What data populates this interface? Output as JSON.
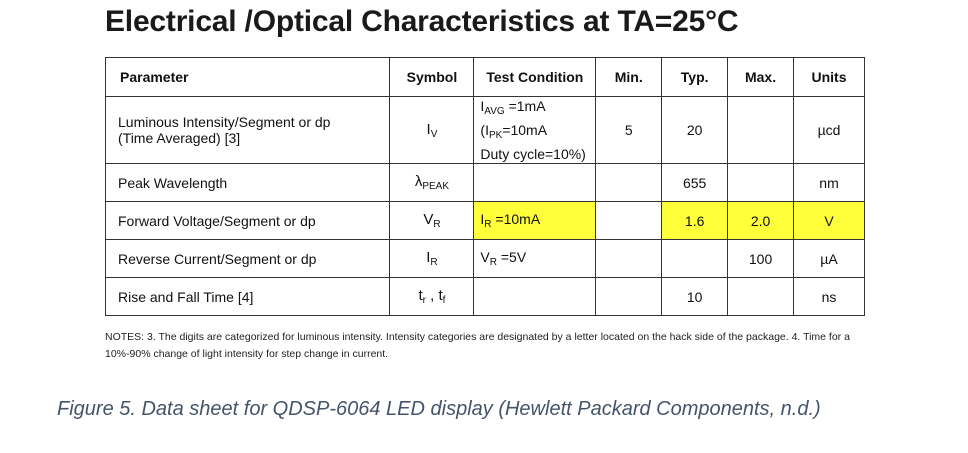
{
  "title": "Electrical /Optical Characteristics at TA=25°C",
  "table": {
    "headers": [
      "Parameter",
      "Symbol",
      "Test Condition",
      "Min.",
      "Typ.",
      "Max.",
      "Units"
    ],
    "rows": [
      {
        "parameter_line1": "Luminous Intensity/Segment or dp",
        "parameter_line2": "(Time Averaged) [3]",
        "symbol_base": "I",
        "symbol_sub": "V",
        "cond_line1_base": "I",
        "cond_line1_sub": "AVG",
        "cond_line1_rest": " =1mA",
        "cond_line2_pre": "(I",
        "cond_line2_sub": "PK",
        "cond_line2_rest": "=10mA",
        "cond_line3": "Duty cycle=10%)",
        "min": "5",
        "typ": "20",
        "max": "",
        "units": "µcd"
      },
      {
        "parameter": "Peak Wavelength",
        "symbol_base": "λ",
        "symbol_sub": "PEAK",
        "condition": "",
        "min": "",
        "typ": "655",
        "max": "",
        "units": "nm"
      },
      {
        "parameter": "Forward Voltage/Segment or dp",
        "symbol_base": "V",
        "symbol_sub": "R",
        "cond_base": "I",
        "cond_sub": "R",
        "cond_rest": " =10mA",
        "min": "",
        "typ": "1.6",
        "max": "2.0",
        "units": "V",
        "highlight_color": "#ffff3a"
      },
      {
        "parameter": "Reverse Current/Segment or dp",
        "symbol_base": "I",
        "symbol_sub": "R",
        "cond_base": "V",
        "cond_sub": "R",
        "cond_rest": " =5V",
        "min": "",
        "typ": "",
        "max": "100",
        "units": "µA"
      },
      {
        "parameter": "Rise and Fall Time [4]",
        "symbol_a_base": "t",
        "symbol_a_sub": "r",
        "symbol_sep": " , ",
        "symbol_b_base": "t",
        "symbol_b_sub": "f",
        "condition": "",
        "min": "",
        "typ": "10",
        "max": "",
        "units": "ns"
      }
    ]
  },
  "notes": "NOTES: 3. The digits are categorized for luminous intensity. Intensity categories are designated by a letter located on the hack side of the package. 4. Time for a 10%-90% change of light intensity for step change in current.",
  "caption": "Figure 5. Data sheet for QDSP-6064 LED display (Hewlett Packard Components, n.d.)"
}
